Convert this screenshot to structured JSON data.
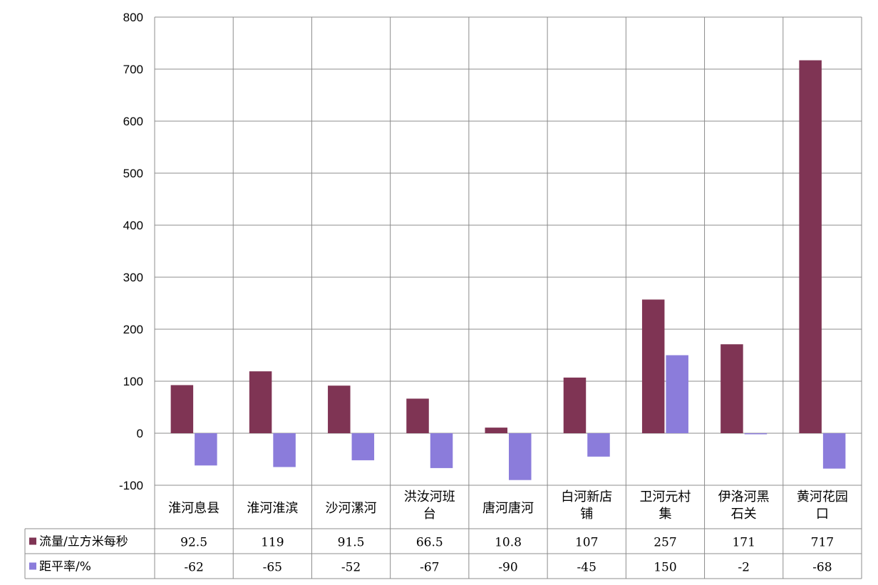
{
  "chart_data": {
    "type": "bar",
    "categories": [
      [
        "淮河息县"
      ],
      [
        "淮河淮滨"
      ],
      [
        "沙河漯河"
      ],
      [
        "洪汝河班",
        "台"
      ],
      [
        "唐河唐河"
      ],
      [
        "白河新店",
        "铺"
      ],
      [
        "卫河元村",
        "集"
      ],
      [
        "伊洛河黑",
        "石关"
      ],
      [
        "黄河花园",
        "口"
      ]
    ],
    "series": [
      {
        "name": "流量/立方米每秒",
        "color": "#7f3454",
        "values": [
          92.5,
          119,
          91.5,
          66.5,
          10.8,
          107,
          257,
          171,
          717
        ],
        "labels": [
          "92.5",
          "119",
          "91.5",
          "66.5",
          "10.8",
          "107",
          "257",
          "171",
          "717"
        ]
      },
      {
        "name": "距平率/%",
        "color": "#8b7cdb",
        "values": [
          -62,
          -65,
          -52,
          -67,
          -90,
          -45,
          150,
          -2,
          -68
        ],
        "labels": [
          "-62",
          "-65",
          "-52",
          "-67",
          "-90",
          "-45",
          "150",
          "-2",
          "-68"
        ]
      }
    ],
    "ylim": [
      -100,
      800
    ],
    "yticks": [
      -100,
      0,
      100,
      200,
      300,
      400,
      500,
      600,
      700,
      800
    ],
    "grid": true,
    "legend": "data-table"
  }
}
